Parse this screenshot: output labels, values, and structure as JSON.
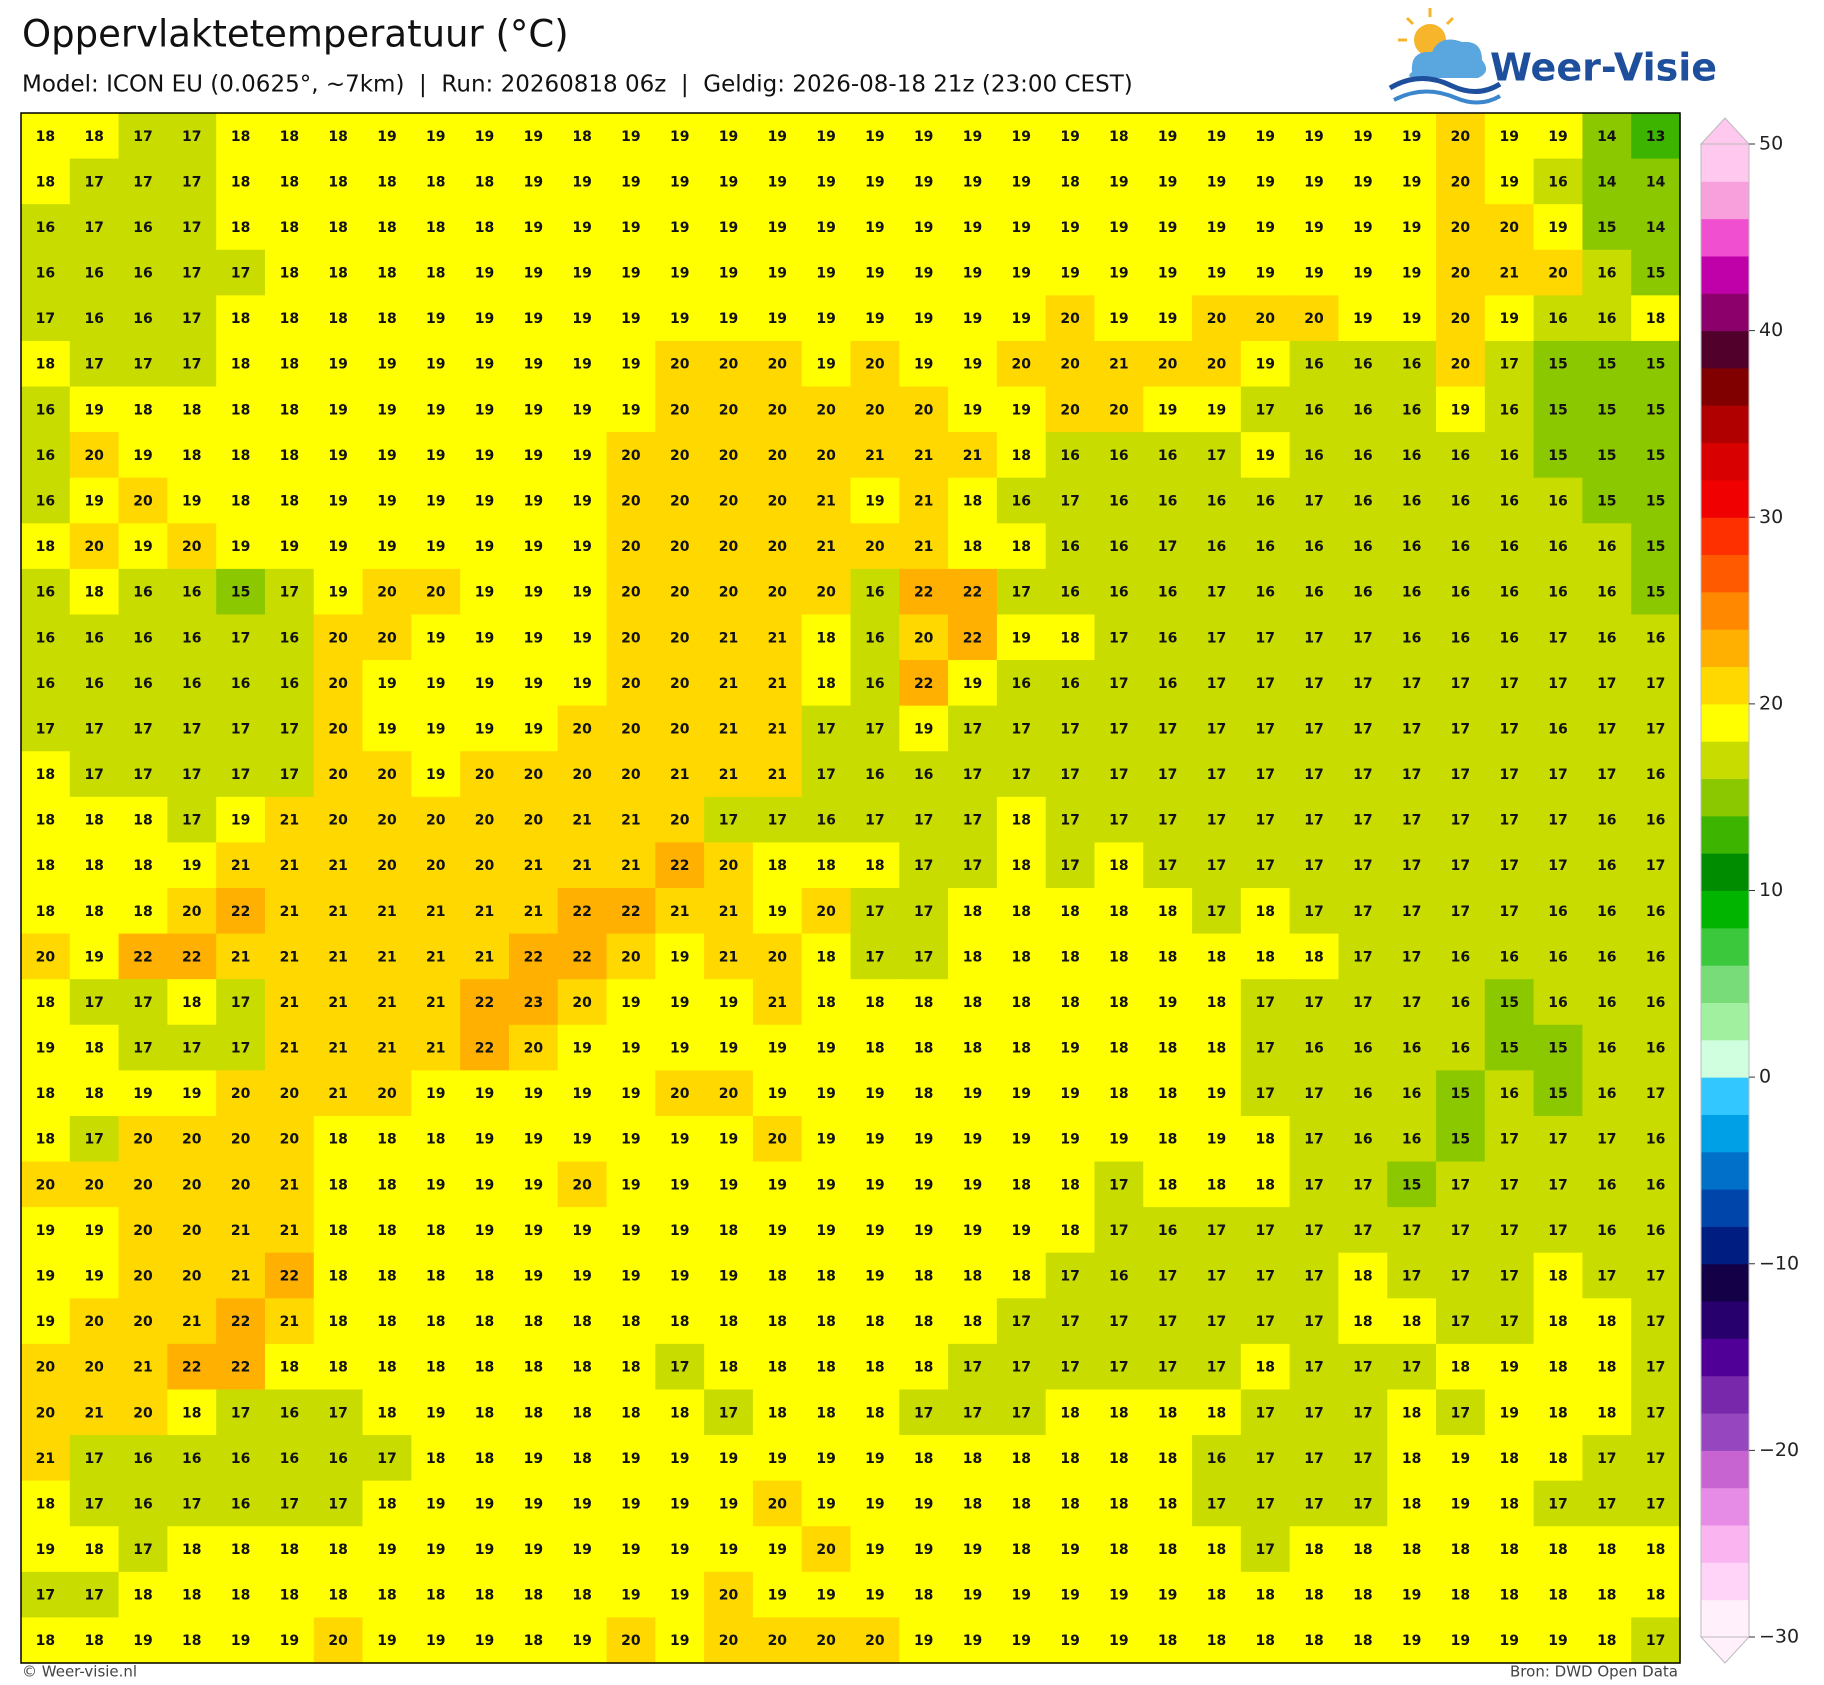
{
  "header": {
    "title": "Oppervlaktetemperatuur (°C)",
    "subtitle": "Model: ICON EU (0.0625°, ~7km)  |  Run: 20260818 06z  |  Geldig: 2026-08-18 21z (23:00 CEST)"
  },
  "logo": "Weer-Visie",
  "map": {
    "rows": [
      [
        18,
        18,
        17,
        17,
        18,
        18,
        18,
        19,
        19,
        19,
        19,
        18,
        19,
        19,
        19,
        19,
        19,
        19,
        19,
        19,
        19,
        19,
        18,
        19,
        19,
        19,
        19,
        19,
        19,
        20,
        19,
        19,
        14,
        13
      ],
      [
        18,
        17,
        17,
        17,
        18,
        18,
        18,
        18,
        18,
        18,
        19,
        19,
        19,
        19,
        19,
        19,
        19,
        19,
        19,
        19,
        19,
        18,
        19,
        19,
        19,
        19,
        19,
        19,
        19,
        20,
        19,
        16,
        14,
        14
      ],
      [
        16,
        17,
        16,
        17,
        18,
        18,
        18,
        18,
        18,
        18,
        19,
        19,
        19,
        19,
        19,
        19,
        19,
        19,
        19,
        19,
        19,
        19,
        19,
        19,
        19,
        19,
        19,
        19,
        19,
        20,
        20,
        19,
        15,
        14
      ],
      [
        16,
        16,
        16,
        17,
        17,
        18,
        18,
        18,
        18,
        19,
        19,
        19,
        19,
        19,
        19,
        19,
        19,
        19,
        19,
        19,
        19,
        19,
        19,
        19,
        19,
        19,
        19,
        19,
        19,
        20,
        21,
        20,
        16,
        15
      ],
      [
        17,
        16,
        16,
        17,
        18,
        18,
        18,
        18,
        19,
        19,
        19,
        19,
        19,
        19,
        19,
        19,
        19,
        19,
        19,
        19,
        19,
        20,
        19,
        19,
        20,
        20,
        20,
        19,
        19,
        20,
        19,
        16,
        16,
        18
      ],
      [
        18,
        17,
        17,
        17,
        18,
        18,
        19,
        19,
        19,
        19,
        19,
        19,
        19,
        20,
        20,
        20,
        19,
        20,
        19,
        19,
        20,
        20,
        21,
        20,
        20,
        19,
        16,
        16,
        16,
        20,
        17,
        15,
        15,
        15
      ],
      [
        16,
        19,
        18,
        18,
        18,
        18,
        19,
        19,
        19,
        19,
        19,
        19,
        19,
        20,
        20,
        20,
        20,
        20,
        20,
        19,
        19,
        20,
        20,
        19,
        19,
        17,
        16,
        16,
        16,
        19,
        16,
        15,
        15,
        15
      ],
      [
        16,
        20,
        19,
        18,
        18,
        18,
        19,
        19,
        19,
        19,
        19,
        19,
        20,
        20,
        20,
        20,
        20,
        21,
        21,
        21,
        18,
        16,
        16,
        16,
        17,
        19,
        16,
        16,
        16,
        16,
        16,
        15,
        15,
        15
      ],
      [
        16,
        19,
        20,
        19,
        18,
        18,
        19,
        19,
        19,
        19,
        19,
        19,
        20,
        20,
        20,
        20,
        21,
        19,
        21,
        18,
        16,
        17,
        16,
        16,
        16,
        16,
        17,
        16,
        16,
        16,
        16,
        16,
        15,
        15
      ],
      [
        18,
        20,
        19,
        20,
        19,
        19,
        19,
        19,
        19,
        19,
        19,
        19,
        20,
        20,
        20,
        20,
        21,
        20,
        21,
        18,
        18,
        16,
        16,
        17,
        16,
        16,
        16,
        16,
        16,
        16,
        16,
        16,
        16,
        15
      ],
      [
        16,
        18,
        16,
        16,
        15,
        17,
        19,
        20,
        20,
        19,
        19,
        19,
        20,
        20,
        20,
        20,
        20,
        16,
        22,
        22,
        17,
        16,
        16,
        16,
        17,
        16,
        16,
        16,
        16,
        16,
        16,
        16,
        16,
        15
      ],
      [
        16,
        16,
        16,
        16,
        17,
        16,
        20,
        20,
        19,
        19,
        19,
        19,
        20,
        20,
        21,
        21,
        18,
        16,
        20,
        22,
        19,
        18,
        17,
        16,
        17,
        17,
        17,
        17,
        16,
        16,
        16,
        17,
        16,
        16
      ],
      [
        16,
        16,
        16,
        16,
        16,
        16,
        20,
        19,
        19,
        19,
        19,
        19,
        20,
        20,
        21,
        21,
        18,
        16,
        22,
        19,
        16,
        16,
        17,
        16,
        17,
        17,
        17,
        17,
        17,
        17,
        17,
        17,
        17,
        17
      ],
      [
        17,
        17,
        17,
        17,
        17,
        17,
        20,
        19,
        19,
        19,
        19,
        20,
        20,
        20,
        21,
        21,
        17,
        17,
        19,
        17,
        17,
        17,
        17,
        17,
        17,
        17,
        17,
        17,
        17,
        17,
        17,
        16,
        17,
        17
      ],
      [
        18,
        17,
        17,
        17,
        17,
        17,
        20,
        20,
        19,
        20,
        20,
        20,
        20,
        21,
        21,
        21,
        17,
        16,
        16,
        17,
        17,
        17,
        17,
        17,
        17,
        17,
        17,
        17,
        17,
        17,
        17,
        17,
        17,
        16
      ],
      [
        18,
        18,
        18,
        17,
        19,
        21,
        20,
        20,
        20,
        20,
        20,
        21,
        21,
        20,
        17,
        17,
        16,
        17,
        17,
        17,
        18,
        17,
        17,
        17,
        17,
        17,
        17,
        17,
        17,
        17,
        17,
        17,
        16,
        16
      ],
      [
        18,
        18,
        18,
        19,
        21,
        21,
        21,
        20,
        20,
        20,
        21,
        21,
        21,
        22,
        20,
        18,
        18,
        18,
        17,
        17,
        18,
        17,
        18,
        17,
        17,
        17,
        17,
        17,
        17,
        17,
        17,
        17,
        16,
        17
      ],
      [
        18,
        18,
        18,
        20,
        22,
        21,
        21,
        21,
        21,
        21,
        21,
        22,
        22,
        21,
        21,
        19,
        20,
        17,
        17,
        18,
        18,
        18,
        18,
        18,
        17,
        18,
        17,
        17,
        17,
        17,
        17,
        16,
        16,
        16
      ],
      [
        20,
        19,
        22,
        22,
        21,
        21,
        21,
        21,
        21,
        21,
        22,
        22,
        20,
        19,
        21,
        20,
        18,
        17,
        17,
        18,
        18,
        18,
        18,
        18,
        18,
        18,
        18,
        17,
        17,
        16,
        16,
        16,
        16,
        16
      ],
      [
        18,
        17,
        17,
        18,
        17,
        21,
        21,
        21,
        21,
        22,
        23,
        20,
        19,
        19,
        19,
        21,
        18,
        18,
        18,
        18,
        18,
        18,
        18,
        19,
        18,
        17,
        17,
        17,
        17,
        16,
        15,
        16,
        16,
        16
      ],
      [
        19,
        18,
        17,
        17,
        17,
        21,
        21,
        21,
        21,
        22,
        20,
        19,
        19,
        19,
        19,
        19,
        19,
        18,
        18,
        18,
        18,
        19,
        18,
        18,
        18,
        17,
        16,
        16,
        16,
        16,
        15,
        15,
        16,
        16
      ],
      [
        18,
        18,
        19,
        19,
        20,
        20,
        21,
        20,
        19,
        19,
        19,
        19,
        19,
        20,
        20,
        19,
        19,
        19,
        18,
        19,
        19,
        19,
        18,
        18,
        19,
        17,
        17,
        16,
        16,
        15,
        16,
        15,
        16,
        17
      ],
      [
        18,
        17,
        20,
        20,
        20,
        20,
        18,
        18,
        18,
        19,
        19,
        19,
        19,
        19,
        19,
        20,
        19,
        19,
        19,
        19,
        19,
        19,
        19,
        18,
        19,
        18,
        17,
        16,
        16,
        15,
        17,
        17,
        17,
        16
      ],
      [
        20,
        20,
        20,
        20,
        20,
        21,
        18,
        18,
        19,
        19,
        19,
        20,
        19,
        19,
        19,
        19,
        19,
        19,
        19,
        19,
        18,
        18,
        17,
        18,
        18,
        18,
        17,
        17,
        15,
        17,
        17,
        17,
        16,
        16
      ],
      [
        19,
        19,
        20,
        20,
        21,
        21,
        18,
        18,
        18,
        19,
        19,
        19,
        19,
        19,
        18,
        19,
        19,
        19,
        19,
        19,
        19,
        18,
        17,
        16,
        17,
        17,
        17,
        17,
        17,
        17,
        17,
        17,
        16,
        16
      ],
      [
        19,
        19,
        20,
        20,
        21,
        22,
        18,
        18,
        18,
        18,
        19,
        19,
        19,
        19,
        19,
        18,
        18,
        19,
        18,
        18,
        18,
        17,
        16,
        17,
        17,
        17,
        17,
        18,
        17,
        17,
        17,
        18,
        17,
        17
      ],
      [
        19,
        20,
        20,
        21,
        22,
        21,
        18,
        18,
        18,
        18,
        18,
        18,
        18,
        18,
        18,
        18,
        18,
        18,
        18,
        18,
        17,
        17,
        17,
        17,
        17,
        17,
        17,
        18,
        18,
        17,
        17,
        18,
        18,
        17
      ],
      [
        20,
        20,
        21,
        22,
        22,
        18,
        18,
        18,
        18,
        18,
        18,
        18,
        18,
        17,
        18,
        18,
        18,
        18,
        18,
        17,
        17,
        17,
        17,
        17,
        17,
        18,
        17,
        17,
        17,
        18,
        19,
        18,
        18,
        17
      ],
      [
        20,
        21,
        20,
        18,
        17,
        16,
        17,
        18,
        19,
        18,
        18,
        18,
        18,
        18,
        17,
        18,
        18,
        18,
        17,
        17,
        17,
        18,
        18,
        18,
        18,
        17,
        17,
        17,
        18,
        17,
        19,
        18,
        18,
        17
      ],
      [
        21,
        17,
        16,
        16,
        16,
        16,
        16,
        17,
        18,
        18,
        19,
        18,
        19,
        19,
        19,
        19,
        19,
        19,
        18,
        18,
        18,
        18,
        18,
        18,
        16,
        17,
        17,
        17,
        18,
        19,
        18,
        18,
        17,
        17
      ],
      [
        18,
        17,
        16,
        17,
        16,
        17,
        17,
        18,
        19,
        19,
        19,
        19,
        19,
        19,
        19,
        20,
        19,
        19,
        19,
        18,
        18,
        18,
        18,
        18,
        17,
        17,
        17,
        17,
        18,
        19,
        18,
        17,
        17,
        17
      ],
      [
        19,
        18,
        17,
        18,
        18,
        18,
        18,
        19,
        19,
        19,
        19,
        19,
        19,
        19,
        19,
        19,
        20,
        19,
        19,
        19,
        18,
        19,
        18,
        18,
        18,
        17,
        18,
        18,
        18,
        18,
        18,
        18,
        18,
        18
      ],
      [
        17,
        17,
        18,
        18,
        18,
        18,
        18,
        18,
        18,
        18,
        18,
        18,
        19,
        19,
        20,
        19,
        19,
        19,
        18,
        19,
        19,
        19,
        19,
        19,
        18,
        18,
        18,
        18,
        19,
        18,
        18,
        18,
        18,
        18
      ],
      [
        18,
        18,
        19,
        18,
        19,
        19,
        20,
        19,
        19,
        19,
        18,
        19,
        20,
        19,
        20,
        20,
        20,
        20,
        19,
        19,
        19,
        19,
        19,
        18,
        18,
        18,
        18,
        18,
        19,
        19,
        19,
        19,
        18,
        17
      ]
    ]
  },
  "colorbar": {
    "lim": [
      -30,
      50
    ],
    "ticks": [
      50,
      40,
      30,
      20,
      10,
      0,
      {
        "value": -10,
        "label": "−10"
      },
      {
        "value": -20,
        "label": "−20"
      },
      {
        "value": -30,
        "label": "−30"
      }
    ],
    "colors": [
      "#fff0fc",
      "#ffd4f8",
      "#fab4f0",
      "#e68ce6",
      "#c864d2",
      "#9646be",
      "#7828aa",
      "#500096",
      "#28006e",
      "#140046",
      "#001e82",
      "#0046aa",
      "#0070c8",
      "#00a0e6",
      "#32c8ff",
      "#d0ffe0",
      "#a0f0a0",
      "#78dc78",
      "#3cc83c",
      "#00b400",
      "#008c00",
      "#3cb400",
      "#8cc800",
      "#c8dc00",
      "#ffff00",
      "#ffd800",
      "#ffb000",
      "#ff8800",
      "#ff5a00",
      "#ff3000",
      "#f00000",
      "#d80000",
      "#b00000",
      "#800000",
      "#50002a",
      "#8c006c",
      "#c000a8",
      "#f050d0",
      "#f8a0dc",
      "#ffc8ee"
    ]
  },
  "footer": {
    "left": "© Weer-visie.nl",
    "right": "Bron: DWD Open Data"
  }
}
